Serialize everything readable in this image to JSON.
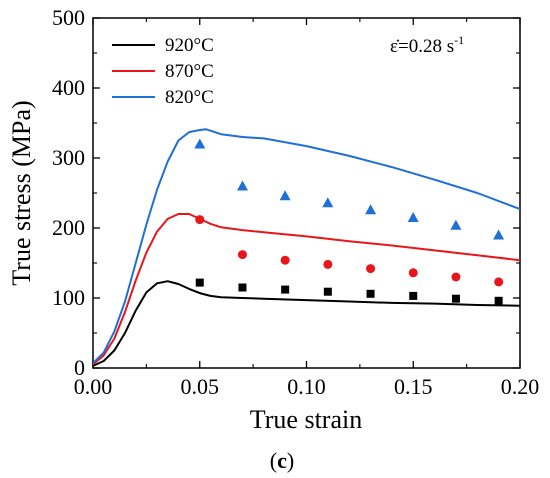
{
  "chart_data": {
    "type": "line",
    "xlabel": "True strain",
    "ylabel": "True stress (MPa)",
    "xlim": [
      0.0,
      0.2
    ],
    "ylim": [
      0,
      500
    ],
    "x_ticks": [
      "0.00",
      "0.05",
      "0.10",
      "0.15",
      "0.20"
    ],
    "y_ticks": [
      "0",
      "100",
      "200",
      "300",
      "400",
      "500"
    ],
    "legend_position": "top-left",
    "annotation": {
      "base": "ε̇=0.28 s",
      "sup": "-1"
    },
    "panel_label": {
      "open": "(",
      "letter": "c",
      "close": ")"
    },
    "series": [
      {
        "name": "920°C",
        "color": "#000000",
        "marker": "square",
        "line_x": [
          0,
          0.005,
          0.01,
          0.015,
          0.02,
          0.025,
          0.03,
          0.035,
          0.04,
          0.045,
          0.05,
          0.055,
          0.06,
          0.07,
          0.08,
          0.1,
          0.12,
          0.14,
          0.16,
          0.18,
          0.2
        ],
        "line_y": [
          3,
          10,
          25,
          50,
          82,
          108,
          121,
          124,
          120,
          113,
          107,
          103,
          101,
          100,
          99,
          97,
          95,
          93,
          92,
          90,
          89
        ],
        "points_x": [
          0.05,
          0.07,
          0.09,
          0.11,
          0.13,
          0.15,
          0.17,
          0.19
        ],
        "points_y": [
          122,
          115,
          112,
          109,
          106,
          103,
          99,
          96
        ]
      },
      {
        "name": "870°C",
        "color": "#e8161b",
        "marker": "circle",
        "line_x": [
          0,
          0.005,
          0.01,
          0.015,
          0.02,
          0.025,
          0.03,
          0.035,
          0.04,
          0.045,
          0.05,
          0.055,
          0.06,
          0.07,
          0.08,
          0.1,
          0.12,
          0.14,
          0.16,
          0.18,
          0.2
        ],
        "line_y": [
          5,
          18,
          42,
          80,
          125,
          165,
          195,
          213,
          220,
          220,
          213,
          206,
          201,
          197,
          194,
          188,
          181,
          175,
          168,
          161,
          154
        ],
        "points_x": [
          0.05,
          0.07,
          0.09,
          0.11,
          0.13,
          0.15,
          0.17,
          0.19
        ],
        "points_y": [
          212,
          162,
          154,
          148,
          142,
          136,
          130,
          123
        ]
      },
      {
        "name": "820°C",
        "color": "#1e6fd6",
        "marker": "triangle",
        "line_x": [
          0,
          0.005,
          0.01,
          0.015,
          0.02,
          0.025,
          0.03,
          0.035,
          0.04,
          0.045,
          0.05,
          0.053,
          0.055,
          0.06,
          0.07,
          0.08,
          0.1,
          0.12,
          0.14,
          0.16,
          0.18,
          0.2
        ],
        "line_y": [
          7,
          22,
          52,
          95,
          150,
          205,
          255,
          295,
          325,
          337,
          340,
          341,
          339,
          334,
          330,
          328,
          317,
          303,
          287,
          269,
          250,
          227
        ],
        "points_x": [
          0.05,
          0.07,
          0.09,
          0.11,
          0.13,
          0.15,
          0.17,
          0.19
        ],
        "points_y": [
          320,
          260,
          246,
          236,
          226,
          215,
          204,
          190
        ]
      }
    ]
  }
}
